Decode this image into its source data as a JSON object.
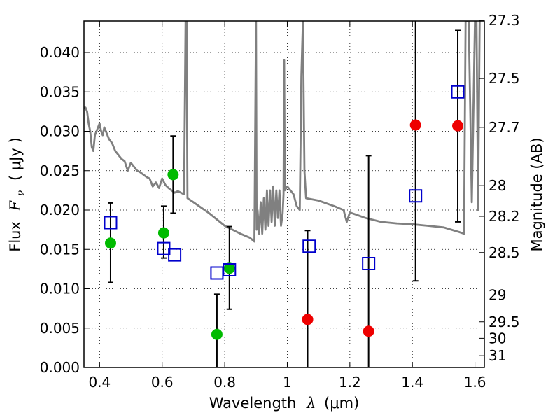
{
  "chart_data": {
    "type": "scatter",
    "title": "",
    "xlabel": "Wavelength",
    "xlabel_symbol": "λ",
    "xlabel_unit": "(μm)",
    "ylabel": "Flux",
    "ylabel_symbol": "F",
    "ylabel_subscript": "ν",
    "ylabel_unit": "( μJy )",
    "y2label": "Magnitude (AB)",
    "xlim": [
      0.35,
      1.63
    ],
    "ylim": [
      0.0,
      0.044
    ],
    "grid": true,
    "x_ticks": [
      0.4,
      0.6,
      0.8,
      1.0,
      1.2,
      1.4,
      1.6
    ],
    "x_tick_labels": [
      "0.4",
      "0.6",
      "0.8",
      "1",
      "1.2",
      "1.4",
      "1.6"
    ],
    "y_ticks": [
      0.0,
      0.005,
      0.01,
      0.015,
      0.02,
      0.025,
      0.03,
      0.035,
      0.04
    ],
    "y_tick_labels": [
      "0.000",
      "0.005",
      "0.010",
      "0.015",
      "0.020",
      "0.025",
      "0.030",
      "0.035",
      "0.040"
    ],
    "y2_ticks": [
      {
        "label": "27.3",
        "flux": 0.0441
      },
      {
        "label": "27.5",
        "flux": 0.0367
      },
      {
        "label": "27.7",
        "flux": 0.0305
      },
      {
        "label": "28",
        "flux": 0.0231
      },
      {
        "label": "28.2",
        "flux": 0.0192
      },
      {
        "label": "28.5",
        "flux": 0.0146
      },
      {
        "label": "29",
        "flux": 0.0092
      },
      {
        "label": "29.5",
        "flux": 0.0058
      },
      {
        "label": "30",
        "flux": 0.0037
      },
      {
        "label": "31",
        "flux": 0.0015
      }
    ],
    "colors": {
      "detections": "#00bb00",
      "upper_limits": "#ee0000",
      "model": "#0000cc",
      "spectrum": "#808080",
      "errorbars": "#000000"
    },
    "series": [
      {
        "marker": "circle",
        "points": [
          {
            "x": 0.435,
            "y": 0.0158,
            "yerr_low": 0.005,
            "yerr_high": 0.0051
          },
          {
            "x": 0.605,
            "y": 0.0171,
            "yerr_low": 0.0032,
            "yerr_high": 0.0034
          },
          {
            "x": 0.635,
            "y": 0.0245,
            "yerr_low": 0.0049,
            "yerr_high": 0.0049
          },
          {
            "x": 0.775,
            "y": 0.0042,
            "yerr_low": 0.0042,
            "yerr_high": 0.0051
          },
          {
            "x": 0.815,
            "y": 0.0126,
            "yerr_low": 0.0052,
            "yerr_high": 0.0053
          }
        ]
      },
      {
        "marker": "circle",
        "points": [
          {
            "x": 1.065,
            "y": 0.0061,
            "yerr_low": 0.0061,
            "yerr_high": 0.0113
          },
          {
            "x": 1.26,
            "y": 0.0046,
            "yerr_low": 0.0046,
            "yerr_high": 0.0223
          },
          {
            "x": 1.41,
            "y": 0.0308,
            "yerr_low": 0.0198,
            "yerr_high": 0.0132
          },
          {
            "x": 1.545,
            "y": 0.0307,
            "yerr_low": 0.0122,
            "yerr_high": 0.0121
          }
        ]
      },
      {
        "marker": "open-square",
        "points": [
          {
            "x": 0.435,
            "y": 0.0184
          },
          {
            "x": 0.605,
            "y": 0.0151
          },
          {
            "x": 0.64,
            "y": 0.0143
          },
          {
            "x": 0.775,
            "y": 0.012
          },
          {
            "x": 0.815,
            "y": 0.0124
          },
          {
            "x": 1.07,
            "y": 0.0154
          },
          {
            "x": 1.26,
            "y": 0.0132
          },
          {
            "x": 1.41,
            "y": 0.0218
          },
          {
            "x": 1.545,
            "y": 0.035
          }
        ]
      },
      {
        "type": "line",
        "x": [
          0.35,
          0.355,
          0.36,
          0.365,
          0.37,
          0.375,
          0.38,
          0.385,
          0.39,
          0.395,
          0.4,
          0.405,
          0.41,
          0.415,
          0.42,
          0.43,
          0.44,
          0.45,
          0.46,
          0.47,
          0.48,
          0.49,
          0.5,
          0.51,
          0.52,
          0.53,
          0.54,
          0.55,
          0.56,
          0.57,
          0.58,
          0.59,
          0.6,
          0.61,
          0.62,
          0.63,
          0.64,
          0.65,
          0.66,
          0.67,
          0.675,
          0.678,
          0.681,
          0.685,
          0.7,
          0.75,
          0.8,
          0.85,
          0.88,
          0.895,
          0.9,
          0.902,
          0.905,
          0.91,
          0.915,
          0.92,
          0.925,
          0.93,
          0.935,
          0.94,
          0.945,
          0.95,
          0.955,
          0.96,
          0.965,
          0.97,
          0.975,
          0.98,
          0.985,
          0.988,
          0.99,
          0.992,
          1.0,
          1.01,
          1.02,
          1.03,
          1.04,
          1.045,
          1.05,
          1.055,
          1.06,
          1.1,
          1.15,
          1.18,
          1.19,
          1.2,
          1.25,
          1.3,
          1.35,
          1.4,
          1.45,
          1.5,
          1.55,
          1.565,
          1.57,
          1.58,
          1.59,
          1.6,
          1.605,
          1.61,
          1.615
        ],
        "y": [
          0.033,
          0.033,
          0.0325,
          0.031,
          0.03,
          0.028,
          0.0275,
          0.0295,
          0.03,
          0.0305,
          0.031,
          0.03,
          0.0295,
          0.0305,
          0.03,
          0.029,
          0.0285,
          0.0275,
          0.027,
          0.0265,
          0.0262,
          0.025,
          0.026,
          0.0255,
          0.025,
          0.0248,
          0.0245,
          0.0242,
          0.024,
          0.023,
          0.0235,
          0.0228,
          0.024,
          0.0232,
          0.0228,
          0.0225,
          0.0222,
          0.0224,
          0.0222,
          0.022,
          0.044,
          0.044,
          0.0215,
          0.0214,
          0.021,
          0.0196,
          0.018,
          0.017,
          0.0165,
          0.016,
          0.044,
          0.0175,
          0.02,
          0.017,
          0.021,
          0.017,
          0.0215,
          0.0175,
          0.0225,
          0.018,
          0.0225,
          0.0185,
          0.023,
          0.018,
          0.0225,
          0.019,
          0.0225,
          0.018,
          0.0195,
          0.022,
          0.039,
          0.0225,
          0.023,
          0.0225,
          0.022,
          0.0205,
          0.02,
          0.037,
          0.044,
          0.025,
          0.0215,
          0.0212,
          0.0205,
          0.02,
          0.0185,
          0.0197,
          0.019,
          0.0185,
          0.0183,
          0.0182,
          0.018,
          0.0178,
          0.0172,
          0.017,
          0.044,
          0.044,
          0.021,
          0.044,
          0.044,
          0.02,
          0.044
        ]
      }
    ]
  }
}
